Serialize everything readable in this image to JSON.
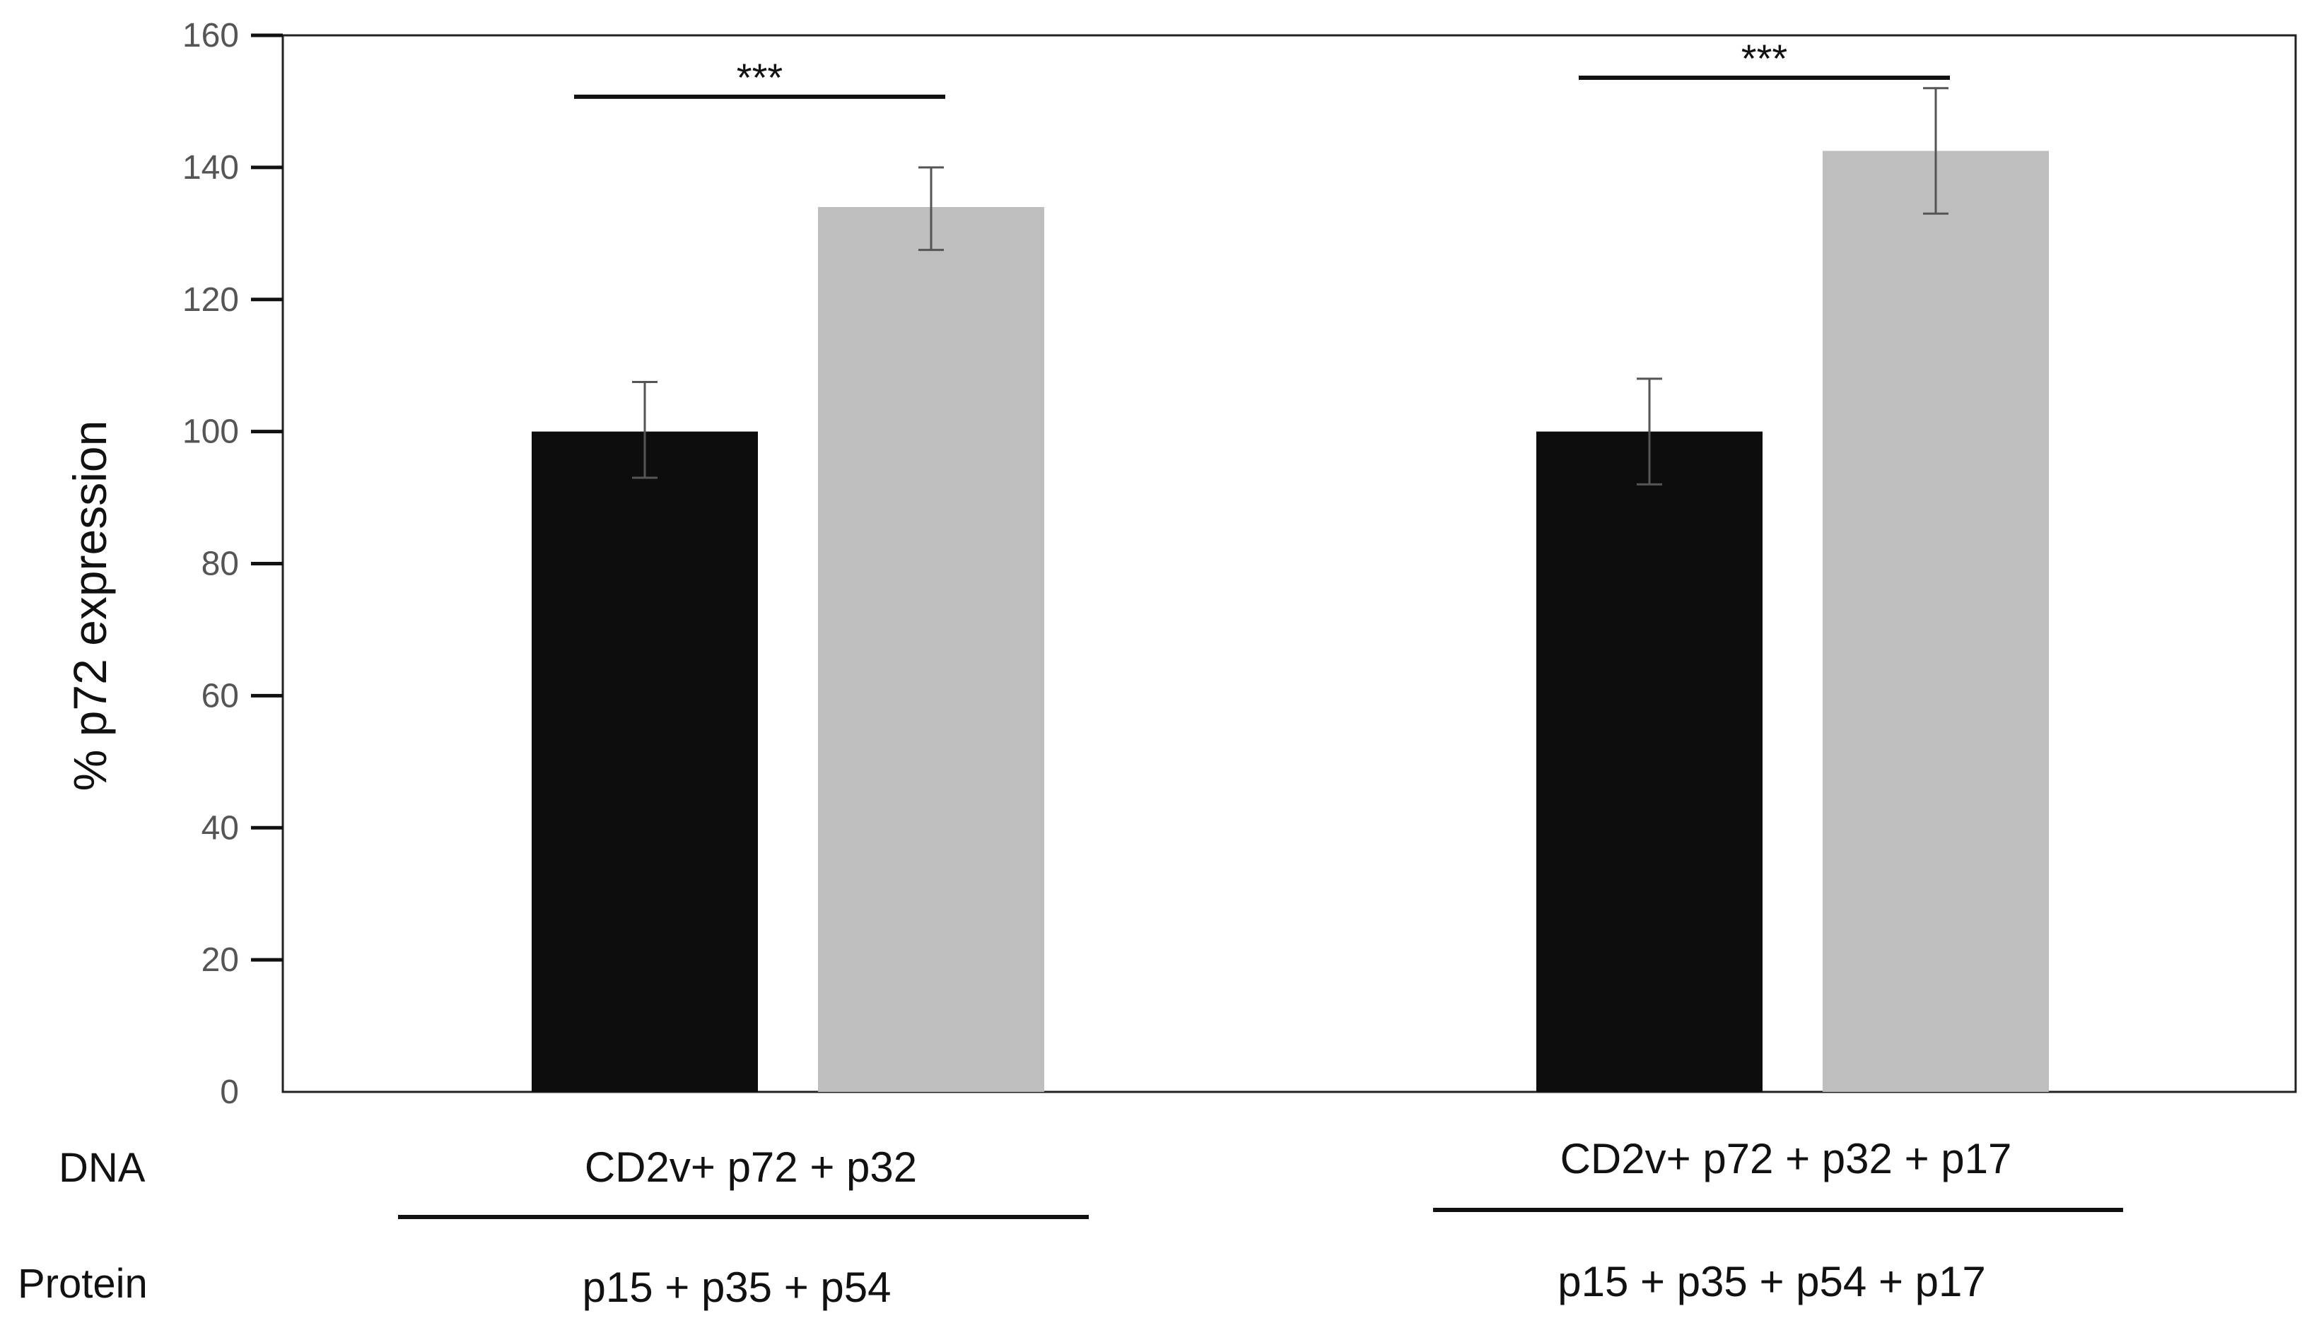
{
  "chart_data": {
    "type": "bar",
    "ylabel": "% p72 expression",
    "ylim": [
      0,
      160
    ],
    "yticks": [
      0,
      20,
      40,
      60,
      80,
      100,
      120,
      140,
      160
    ],
    "grid": false,
    "groups": [
      {
        "dna": "CD2v+ p72 + p32",
        "protein": "p15 + p35 + p54",
        "bars": [
          {
            "value": 100,
            "error_low": 93,
            "error_high": 107.5,
            "color": "#0d0d0d"
          },
          {
            "value": 134,
            "error_low": 127.5,
            "error_high": 140,
            "color": "#bebebe"
          }
        ],
        "significance": "***"
      },
      {
        "dna": "CD2v+ p72 + p32 + p17",
        "protein": "p15 + p35 + p54 + p17",
        "bars": [
          {
            "value": 100,
            "error_low": 92,
            "error_high": 108,
            "color": "#0d0d0d"
          },
          {
            "value": 142.5,
            "error_low": 133,
            "error_high": 152,
            "color": "#bebebe"
          }
        ],
        "significance": "***"
      }
    ],
    "row_labels": {
      "dna": "DNA",
      "protein": "Protein"
    }
  }
}
